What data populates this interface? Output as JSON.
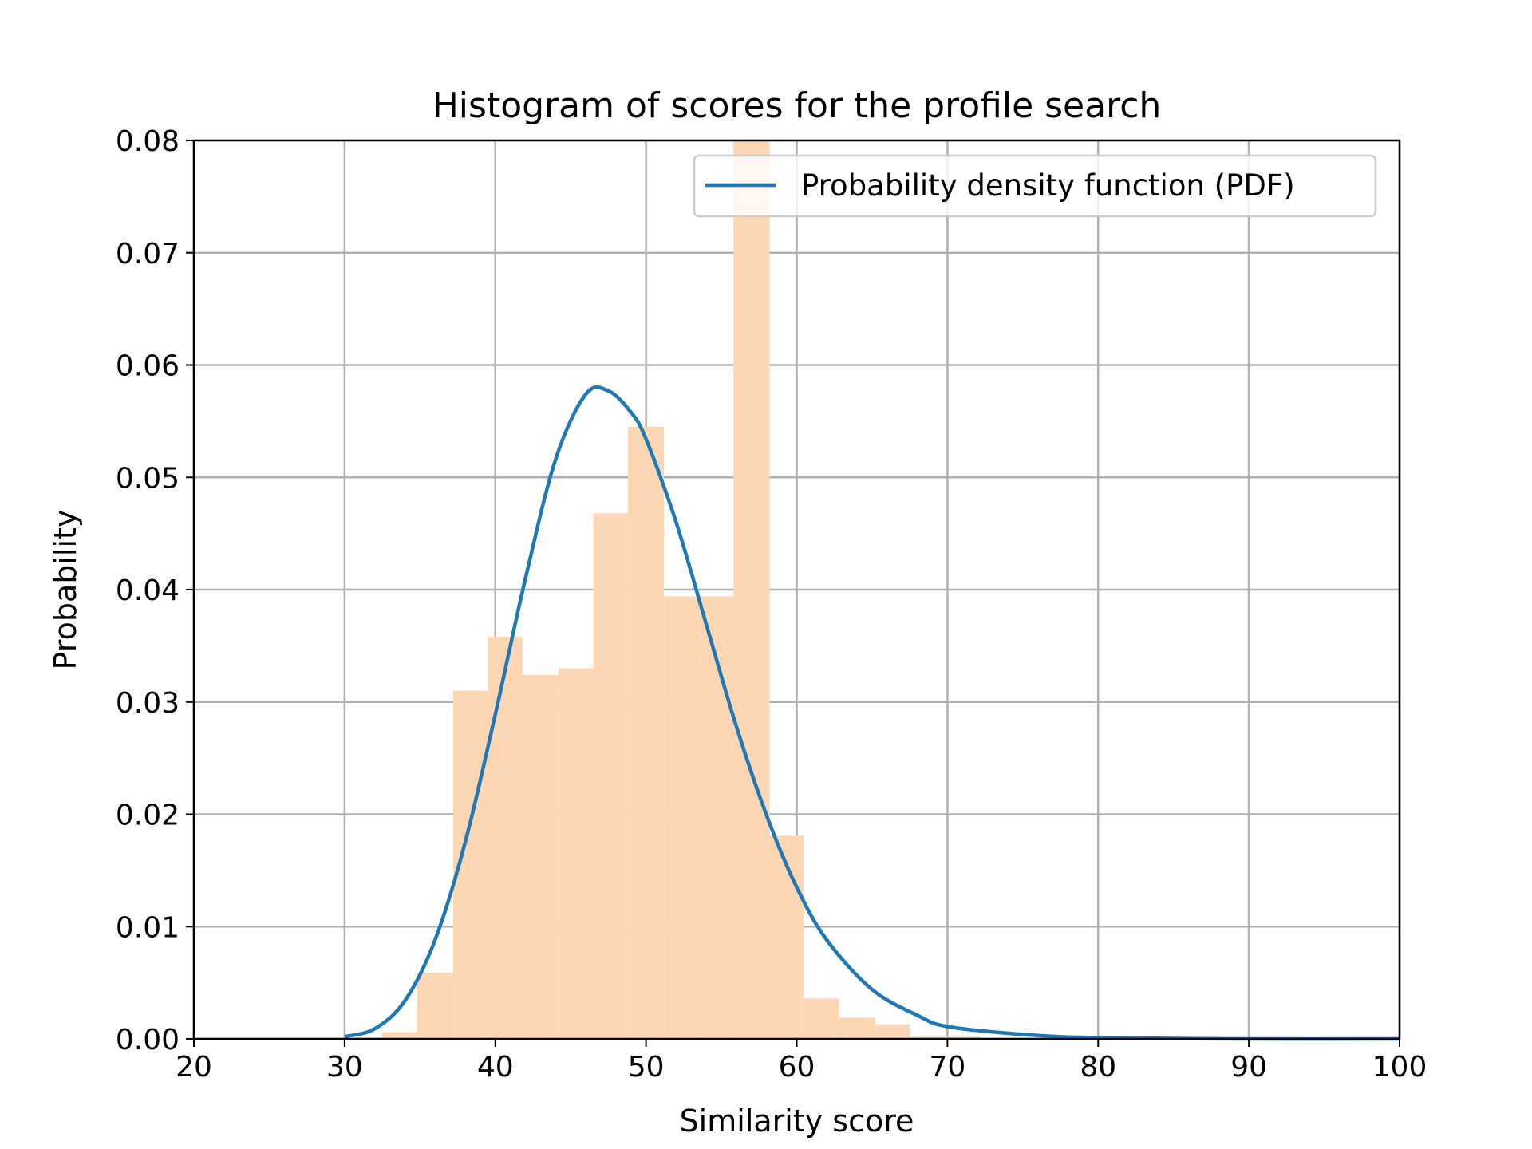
{
  "chart_data": {
    "type": "bar",
    "title": "Histogram of scores for the profile search",
    "xlabel": "Similarity score",
    "ylabel": "Probability",
    "xlim": [
      20,
      100
    ],
    "ylim": [
      0,
      0.08
    ],
    "xticks": [
      20,
      30,
      40,
      50,
      60,
      70,
      80,
      90,
      100
    ],
    "yticks": [
      0,
      0.01,
      0.02,
      0.03,
      0.04,
      0.05,
      0.06,
      0.07,
      0.08
    ],
    "xtick_labels": [
      "20",
      "30",
      "40",
      "50",
      "60",
      "70",
      "80",
      "90",
      "100"
    ],
    "ytick_labels": [
      "0.00",
      "0.01",
      "0.02",
      "0.03",
      "0.04",
      "0.05",
      "0.06",
      "0.07",
      "0.08"
    ],
    "grid": true,
    "legend": {
      "position": "top-right",
      "entries": [
        "Probability density function (PDF)"
      ]
    },
    "histogram": {
      "color": "#fdd6b3",
      "bins": [
        {
          "x0": 32.5,
          "x1": 34.8,
          "value": 0.0006
        },
        {
          "x0": 34.8,
          "x1": 37.2,
          "value": 0.0059
        },
        {
          "x0": 37.2,
          "x1": 39.5,
          "value": 0.031
        },
        {
          "x0": 39.5,
          "x1": 41.8,
          "value": 0.0358
        },
        {
          "x0": 41.8,
          "x1": 44.2,
          "value": 0.0324
        },
        {
          "x0": 44.2,
          "x1": 46.5,
          "value": 0.033
        },
        {
          "x0": 46.5,
          "x1": 48.8,
          "value": 0.0468
        },
        {
          "x0": 48.8,
          "x1": 51.2,
          "value": 0.0545
        },
        {
          "x0": 51.2,
          "x1": 53.5,
          "value": 0.0394
        },
        {
          "x0": 53.5,
          "x1": 55.8,
          "value": 0.0394
        },
        {
          "x0": 55.8,
          "x1": 58.2,
          "value": 0.08
        },
        {
          "x0": 58.2,
          "x1": 60.5,
          "value": 0.0181
        },
        {
          "x0": 60.5,
          "x1": 62.8,
          "value": 0.0036
        },
        {
          "x0": 62.8,
          "x1": 65.2,
          "value": 0.0019
        },
        {
          "x0": 65.2,
          "x1": 67.5,
          "value": 0.0013
        },
        {
          "x0": 67.5,
          "x1": 72.2,
          "value": 0.0002
        }
      ]
    },
    "series": [
      {
        "name": "Probability density function (PDF)",
        "type": "line",
        "color": "#1f77b4",
        "x": [
          30,
          32,
          34,
          36,
          38,
          40,
          42,
          44,
          46,
          47.5,
          49,
          50,
          52,
          54,
          56,
          58,
          60,
          62,
          65,
          68,
          70,
          75,
          80,
          90,
          100
        ],
        "y": [
          0.0002,
          0.0009,
          0.0034,
          0.0088,
          0.0175,
          0.0289,
          0.041,
          0.0516,
          0.0574,
          0.0577,
          0.0558,
          0.0534,
          0.046,
          0.0369,
          0.0278,
          0.0199,
          0.0135,
          0.0088,
          0.0044,
          0.0021,
          0.0011,
          0.0004,
          0.0001,
          0.0,
          0.0
        ]
      }
    ]
  }
}
